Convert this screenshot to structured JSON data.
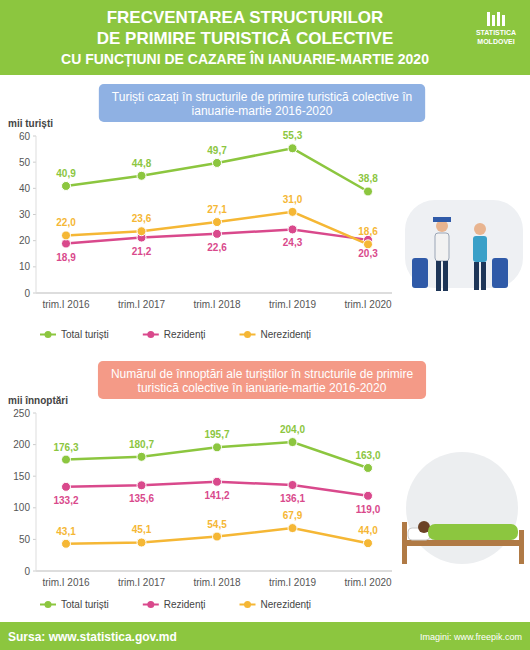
{
  "header": {
    "title": [
      "FRECVENTAREA STRUCTURILOR",
      "DE PRIMIRE TURISTICĂ COLECTIVE",
      "CU FUNCȚIUNI DE CAZARE ÎN IANUARIE-MARTIE 2020"
    ],
    "logo": [
      "STATISTICA",
      "MOLDOVEI"
    ]
  },
  "chart_data": [
    {
      "type": "line",
      "title": "Turiști cazați în structurile de primire turistică colective în ianuarie-martie 2016-2020",
      "ylabel": "mii turiști",
      "categories": [
        "trim.I 2016",
        "trim.I 2017",
        "trim.I 2018",
        "trim.I 2019",
        "trim.I 2020"
      ],
      "ylim": [
        0,
        60
      ],
      "yticks": [
        0,
        10,
        20,
        30,
        40,
        50,
        60
      ],
      "grid": false,
      "legend": "bottom",
      "data_labels": true,
      "series": [
        {
          "name": "Total turiști",
          "color": "#8cc63f",
          "marker": "circle",
          "values": [
            40.9,
            44.8,
            49.7,
            55.3,
            38.8
          ],
          "value_labels": [
            "40,9",
            "44,8",
            "49,7",
            "55,3",
            "38,8"
          ]
        },
        {
          "name": "Rezidenți",
          "color": "#d9498c",
          "marker": "circle",
          "values": [
            18.9,
            21.2,
            22.6,
            24.3,
            20.3
          ],
          "value_labels": [
            "18,9",
            "21,2",
            "22,6",
            "24,3",
            "20,3"
          ]
        },
        {
          "name": "Nerezidenți",
          "color": "#f5b735",
          "marker": "circle",
          "values": [
            22.0,
            23.6,
            27.1,
            31.0,
            18.6
          ],
          "value_labels": [
            "22,0",
            "23,6",
            "27,1",
            "31,0",
            "18,6"
          ]
        }
      ]
    },
    {
      "type": "line",
      "title": "Numărul de înnoptări ale turiștilor în structurile de primire turistică colective în ianuarie-martie 2016-2020",
      "ylabel": "mii înnoptări",
      "categories": [
        "trim.I 2016",
        "trim.I 2017",
        "trim.I 2018",
        "trim.I 2019",
        "trim.I 2020"
      ],
      "ylim": [
        0,
        250
      ],
      "yticks": [
        0,
        50,
        100,
        150,
        200,
        250
      ],
      "grid": false,
      "legend": "bottom",
      "data_labels": true,
      "series": [
        {
          "name": "Total turiști",
          "color": "#8cc63f",
          "marker": "circle",
          "values": [
            176.3,
            180.7,
            195.7,
            204.0,
            163.0
          ],
          "value_labels": [
            "176,3",
            "180,7",
            "195,7",
            "204,0",
            "163,0"
          ]
        },
        {
          "name": "Rezidenți",
          "color": "#d9498c",
          "marker": "circle",
          "values": [
            133.2,
            135.6,
            141.2,
            136.1,
            119.0
          ],
          "value_labels": [
            "133,2",
            "135,6",
            "141,2",
            "136,1",
            "119,0"
          ]
        },
        {
          "name": "Nerezidenți",
          "color": "#f5b735",
          "marker": "circle",
          "values": [
            43.1,
            45.1,
            54.5,
            67.9,
            44.0
          ],
          "value_labels": [
            "43,1",
            "45,1",
            "54,5",
            "67,9",
            "44,0"
          ]
        }
      ]
    }
  ],
  "footer": {
    "source": "Sursa: www.statistica.gov.md",
    "images": "Imagini: www.freepik.com"
  }
}
